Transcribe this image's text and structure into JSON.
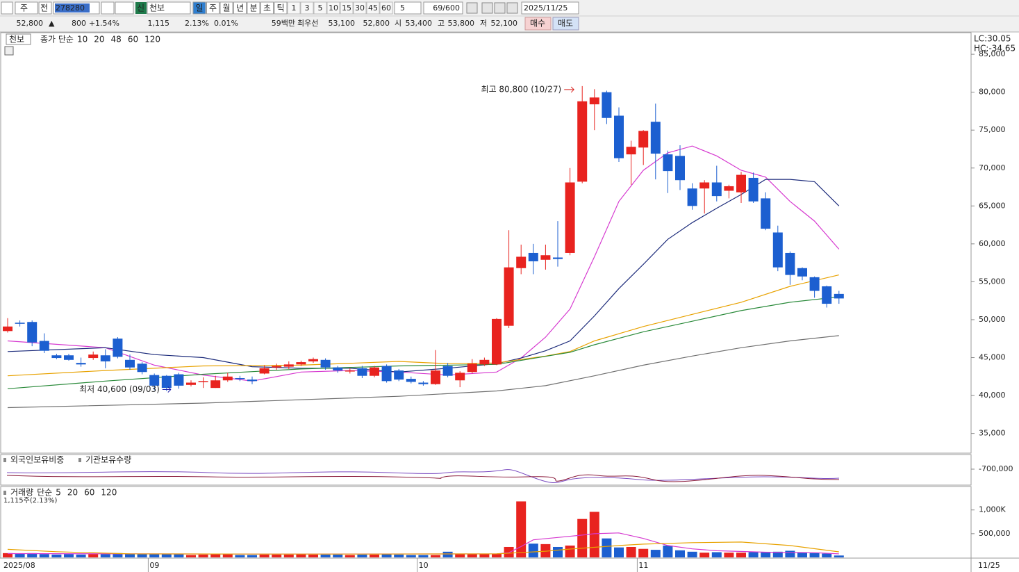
{
  "toolbar": {
    "market": "주",
    "prev": "전",
    "code": "278280",
    "new": "신",
    "name": "천보",
    "periods": [
      "일",
      "주",
      "월",
      "년",
      "분",
      "초",
      "틱"
    ],
    "intervals": [
      "1",
      "3",
      "5",
      "10",
      "15",
      "30",
      "45",
      "60"
    ],
    "interval_value": "5",
    "count": "69/600",
    "date": "2025/11/25"
  },
  "quote": {
    "price": "52,800",
    "arrow": "▲",
    "change": "800",
    "change_rate": "+1.54%",
    "volume": "1,115",
    "volume_rate": "2.13%",
    "turnover": "0.01%",
    "amount": "59백만",
    "best_label": "최우선",
    "ask": "53,100",
    "bid": "52,800",
    "open_label": "시",
    "open": "53,400",
    "high_label": "고",
    "high": "53,800",
    "low_label": "저",
    "low": "52,100",
    "buy": "매수",
    "sell": "매도"
  },
  "indicator_panel": {
    "labels": [
      "외국인보유비중",
      "기관보유수량"
    ],
    "axis_label": "-700,000"
  },
  "chart_data": [
    {
      "type": "candlestick",
      "title": "천보",
      "legend_label": "종가 단순",
      "categories": [
        "2025/08",
        null,
        null,
        null,
        null,
        null,
        null,
        null,
        null,
        null,
        null,
        null,
        "09",
        null,
        null,
        null,
        null,
        null,
        null,
        null,
        null,
        null,
        null,
        null,
        null,
        null,
        null,
        null,
        null,
        null,
        null,
        null,
        null,
        null,
        "10",
        null,
        null,
        null,
        null,
        null,
        null,
        null,
        null,
        null,
        null,
        null,
        null,
        null,
        null,
        null,
        null,
        null,
        "11",
        null,
        null,
        null,
        null,
        null,
        null,
        null,
        null,
        null,
        null,
        null,
        null,
        null,
        null,
        null,
        null
      ],
      "last_date": "11/25",
      "open": [
        48500,
        49600,
        49700,
        47200,
        45300,
        45300,
        44300,
        44950,
        45300,
        47500,
        44700,
        44200,
        42700,
        42600,
        42800,
        41400,
        41800,
        41000,
        42000,
        42300,
        42100,
        42900,
        43700,
        43800,
        44100,
        44500,
        44700,
        43700,
        43200,
        43600,
        42600,
        43900,
        43300,
        42200,
        41700,
        41500,
        43900,
        42000,
        43100,
        44100,
        44100,
        49200,
        56800,
        58800,
        57900,
        58200,
        58800,
        68200,
        78400,
        80000,
        76900,
        71800,
        72700,
        76100,
        71800,
        71600,
        67300,
        67300,
        68100,
        67000,
        66800,
        68700,
        66000,
        61500,
        58800,
        56800,
        55600,
        54400,
        53400
      ],
      "high": [
        50200,
        49900,
        49900,
        48200,
        45500,
        45500,
        45000,
        45800,
        46100,
        47700,
        45400,
        44400,
        42900,
        42700,
        43000,
        42000,
        42400,
        42600,
        43000,
        42600,
        42500,
        44000,
        44200,
        44500,
        44600,
        45000,
        44900,
        43900,
        43600,
        43900,
        43900,
        44100,
        43500,
        42500,
        41900,
        46000,
        44300,
        43200,
        44800,
        45000,
        50200,
        61800,
        59900,
        60000,
        59900,
        63000,
        70000,
        80800,
        80400,
        80200,
        78000,
        73600,
        75000,
        78500,
        72300,
        73000,
        68000,
        68400,
        70300,
        67800,
        69500,
        69400,
        66800,
        62400,
        59000,
        56900,
        55700,
        54500,
        53800
      ],
      "low": [
        48300,
        49100,
        46500,
        45600,
        44800,
        44600,
        43800,
        44700,
        43600,
        44900,
        43400,
        42800,
        40700,
        40600,
        40900,
        41200,
        41000,
        41000,
        41800,
        41900,
        41500,
        42800,
        43400,
        43500,
        43900,
        44300,
        43400,
        43000,
        42900,
        42300,
        42400,
        41700,
        41900,
        41600,
        41300,
        41400,
        42400,
        41100,
        42900,
        43900,
        44000,
        48900,
        56000,
        56000,
        56600,
        57000,
        58500,
        68000,
        75000,
        75800,
        70800,
        67800,
        70400,
        68500,
        66700,
        67100,
        64500,
        64000,
        65600,
        66000,
        65400,
        65400,
        61800,
        56400,
        54600,
        55200,
        52900,
        51600,
        52100
      ],
      "close": [
        49100,
        49500,
        47000,
        45900,
        44950,
        44700,
        44100,
        45400,
        44500,
        45100,
        43700,
        43100,
        41300,
        41000,
        41300,
        41700,
        41900,
        42000,
        42500,
        42200,
        41900,
        43600,
        43900,
        44100,
        44400,
        44800,
        43700,
        43300,
        43300,
        42600,
        43700,
        41900,
        42100,
        41800,
        41500,
        43300,
        42600,
        43000,
        44200,
        44700,
        50100,
        56900,
        58300,
        57700,
        58500,
        58000,
        68100,
        78800,
        79300,
        76600,
        71300,
        72800,
        74900,
        71900,
        69600,
        68400,
        65000,
        68100,
        66300,
        67600,
        69100,
        65600,
        62000,
        56900,
        55900,
        55700,
        53800,
        52100,
        52800
      ],
      "up_color": "#e8231f",
      "down_color": "#1c5fd0",
      "moving_averages": [
        {
          "name": "10",
          "color": "#d63ad0",
          "x": [
            0,
            8,
            12,
            16,
            20,
            24,
            28,
            32,
            36,
            40,
            42,
            44,
            46,
            48,
            50,
            52,
            54,
            56,
            58,
            60,
            62,
            64,
            66,
            68
          ],
          "values": [
            47200,
            46300,
            44000,
            42700,
            41900,
            43100,
            43300,
            43100,
            42700,
            43100,
            44950,
            47700,
            51400,
            58300,
            65600,
            69700,
            72000,
            72900,
            71600,
            69700,
            68800,
            65600,
            63000,
            59300
          ]
        },
        {
          "name": "20",
          "color": "#1b2a7a",
          "x": [
            0,
            8,
            12,
            16,
            20,
            24,
            28,
            32,
            36,
            40,
            42,
            44,
            46,
            48,
            50,
            52,
            54,
            56,
            58,
            60,
            62,
            64,
            66,
            68
          ],
          "values": [
            45800,
            46300,
            45400,
            45000,
            43800,
            43600,
            43600,
            43100,
            43600,
            44200,
            44950,
            45900,
            47200,
            50500,
            54100,
            57300,
            60600,
            62800,
            64700,
            66500,
            68500,
            68500,
            68200,
            65000
          ]
        },
        {
          "name": "48",
          "color": "#e8a200",
          "x": [
            0,
            8,
            16,
            24,
            32,
            36,
            40,
            44,
            46,
            48,
            52,
            56,
            60,
            64,
            68
          ],
          "values": [
            42600,
            43300,
            43900,
            44000,
            44500,
            44200,
            44300,
            45200,
            45800,
            47200,
            49100,
            50700,
            52300,
            54400,
            55900
          ]
        },
        {
          "name": "60",
          "color": "#2a8a3a",
          "x": [
            0,
            8,
            16,
            24,
            32,
            40,
            46,
            48,
            52,
            56,
            60,
            64,
            68
          ],
          "values": [
            40900,
            41900,
            42800,
            43500,
            43900,
            44100,
            45700,
            46700,
            48400,
            49800,
            51200,
            52300,
            53000
          ]
        },
        {
          "name": "120",
          "color": "#707070",
          "x": [
            0,
            16,
            32,
            40,
            44,
            48,
            52,
            56,
            60,
            64,
            68
          ],
          "values": [
            38400,
            39000,
            39900,
            40600,
            41300,
            42600,
            44000,
            45200,
            46300,
            47200,
            47900
          ]
        }
      ],
      "ylim": [
        32400,
        86200
      ],
      "yticks": [
        {
          "value": 85000,
          "label": "85,000"
        },
        {
          "value": 80000,
          "label": "80,000"
        },
        {
          "value": 75000,
          "label": "75,000"
        },
        {
          "value": 70000,
          "label": "70,000"
        },
        {
          "value": 65000,
          "label": "65,000"
        },
        {
          "value": 60000,
          "label": "60,000"
        },
        {
          "value": 55000,
          "label": "55,000"
        },
        {
          "value": 50000,
          "label": "50,000"
        },
        {
          "value": 45000,
          "label": "45,000"
        },
        {
          "value": 40000,
          "label": "40,000"
        },
        {
          "value": 35000,
          "label": "35,000"
        }
      ],
      "max_label": "최고 80,800 (10/27)",
      "min_label": "최저 40,600 (09/03)",
      "corner_labels": [
        "LC:30.05",
        "HC:-34.65"
      ]
    },
    {
      "type": "bar",
      "title": "거래량",
      "legend_label": "단순",
      "note": "1,115주(2.13%)",
      "values": [
        90000,
        80000,
        90000,
        70000,
        60000,
        70000,
        60000,
        70000,
        70000,
        90000,
        70000,
        70000,
        80000,
        80000,
        70000,
        50000,
        60000,
        80000,
        70000,
        50000,
        50000,
        60000,
        60000,
        60000,
        70000,
        60000,
        60000,
        60000,
        50000,
        60000,
        60000,
        70000,
        60000,
        50000,
        50000,
        50000,
        120000,
        70000,
        70000,
        80000,
        80000,
        220000,
        1180000,
        290000,
        280000,
        220000,
        250000,
        810000,
        960000,
        400000,
        210000,
        220000,
        180000,
        160000,
        250000,
        150000,
        120000,
        100000,
        110000,
        100000,
        100000,
        110000,
        110000,
        120000,
        140000,
        110000,
        90000,
        80000,
        40000
      ],
      "legend": [
        {
          "name": "5",
          "color": "#d63ad0"
        },
        {
          "name": "20",
          "color": "#e8a200"
        },
        {
          "name": "60",
          "color": "#2a8a3a"
        },
        {
          "name": "120",
          "color": "#707070"
        }
      ],
      "moving_averages": [
        {
          "color": "#d63ad0",
          "x": [
            0,
            20,
            40,
            41,
            42,
            43,
            45,
            47,
            48,
            50,
            52,
            54,
            56,
            58,
            62,
            66,
            68
          ],
          "values": [
            80000,
            70000,
            75000,
            100000,
            230000,
            370000,
            420000,
            470000,
            500000,
            515000,
            400000,
            250000,
            180000,
            140000,
            110000,
            100000,
            75000
          ]
        },
        {
          "color": "#e8a200",
          "x": [
            0,
            4,
            10,
            20,
            30,
            40,
            44,
            46,
            50,
            52,
            56,
            60,
            64,
            68
          ],
          "values": [
            170000,
            120000,
            75000,
            70000,
            70000,
            75000,
            130000,
            176000,
            250000,
            280000,
            310000,
            323000,
            250000,
            117000
          ]
        }
      ],
      "ylim": [
        0,
        1450000
      ],
      "yticks": [
        {
          "value": 1000000,
          "label": "1,000K"
        },
        {
          "value": 500000,
          "label": "500,000"
        }
      ]
    }
  ]
}
